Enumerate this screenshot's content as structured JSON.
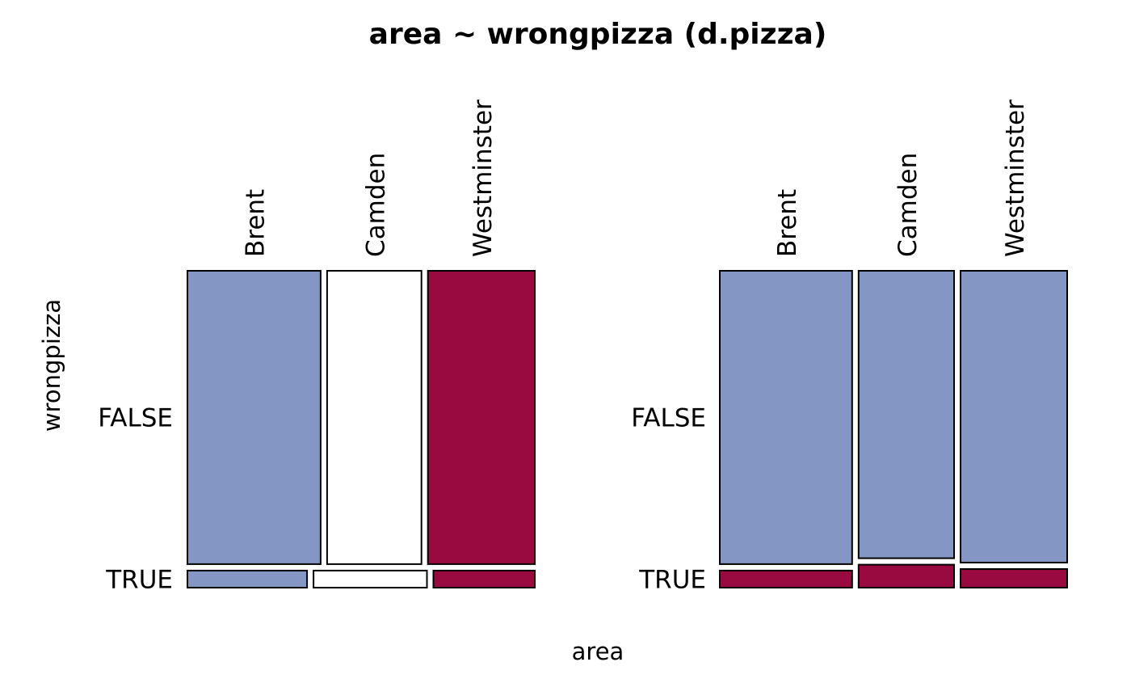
{
  "chart_data": {
    "type": "mosaic",
    "title": "area ~ wrongpizza (d.pizza)",
    "xlabel": "area",
    "ylabel": "wrongpizza",
    "colors": {
      "blue": "#8496C3",
      "crimson": "#990A40",
      "white": "#FFFFFF",
      "stroke": "#000000"
    },
    "panels": [
      {
        "area_categories": [
          "Brent",
          "Camden",
          "Westminster"
        ],
        "wrongpizza_levels": [
          "FALSE",
          "TRUE"
        ],
        "row_shares": [
          0.945,
          0.055
        ],
        "cells": [
          {
            "row": "FALSE",
            "shares": [
              0.394,
              0.279,
              0.316
            ],
            "fills": [
              "blue",
              "white",
              "crimson"
            ]
          },
          {
            "row": "TRUE",
            "shares": [
              0.347,
              0.329,
              0.294
            ],
            "fills": [
              "blue",
              "white",
              "crimson"
            ]
          }
        ]
      },
      {
        "area_categories": [
          "Brent",
          "Camden",
          "Westminster"
        ],
        "wrongpizza_levels": [
          "FALSE",
          "TRUE"
        ],
        "column_shares": [
          0.391,
          0.282,
          0.315
        ],
        "cells": [
          {
            "column": "Brent",
            "shares": [
              0.945,
              0.055
            ],
            "fills": [
              "blue",
              "crimson"
            ]
          },
          {
            "column": "Camden",
            "shares": [
              0.926,
              0.074
            ],
            "fills": [
              "blue",
              "crimson"
            ]
          },
          {
            "column": "Westminster",
            "shares": [
              0.94,
              0.06
            ],
            "fills": [
              "blue",
              "crimson"
            ]
          }
        ]
      }
    ]
  }
}
